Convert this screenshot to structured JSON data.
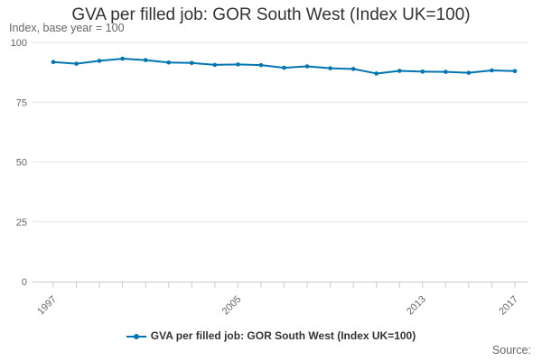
{
  "chart_data": {
    "type": "line",
    "title": "GVA per filled job: GOR South West (Index UK=100)",
    "subtitle": "Index, base year = 100",
    "x": [
      1997,
      1998,
      1999,
      2000,
      2001,
      2002,
      2003,
      2004,
      2005,
      2006,
      2007,
      2008,
      2009,
      2010,
      2011,
      2012,
      2013,
      2014,
      2015,
      2016,
      2017
    ],
    "x_tick_labels": [
      "1997",
      "2005",
      "2013",
      "2017"
    ],
    "x_ticks": [
      1997,
      2005,
      2013,
      2017
    ],
    "y_ticks": [
      0,
      25,
      50,
      75,
      100
    ],
    "y_tick_labels": [
      "0",
      "25",
      "50",
      "75",
      "100"
    ],
    "ylim": [
      0,
      100
    ],
    "grid": true,
    "legend_position": "bottom-center",
    "series": [
      {
        "name": "GVA per filled job: GOR South West (Index UK=100)",
        "color": "#0075b1",
        "values": [
          91.8,
          91.1,
          92.3,
          93.2,
          92.6,
          91.6,
          91.4,
          90.6,
          90.8,
          90.5,
          89.4,
          90.0,
          89.2,
          88.9,
          87.0,
          88.1,
          87.8,
          87.7,
          87.3,
          88.3,
          88.0
        ]
      }
    ],
    "source_label": "Source:"
  }
}
